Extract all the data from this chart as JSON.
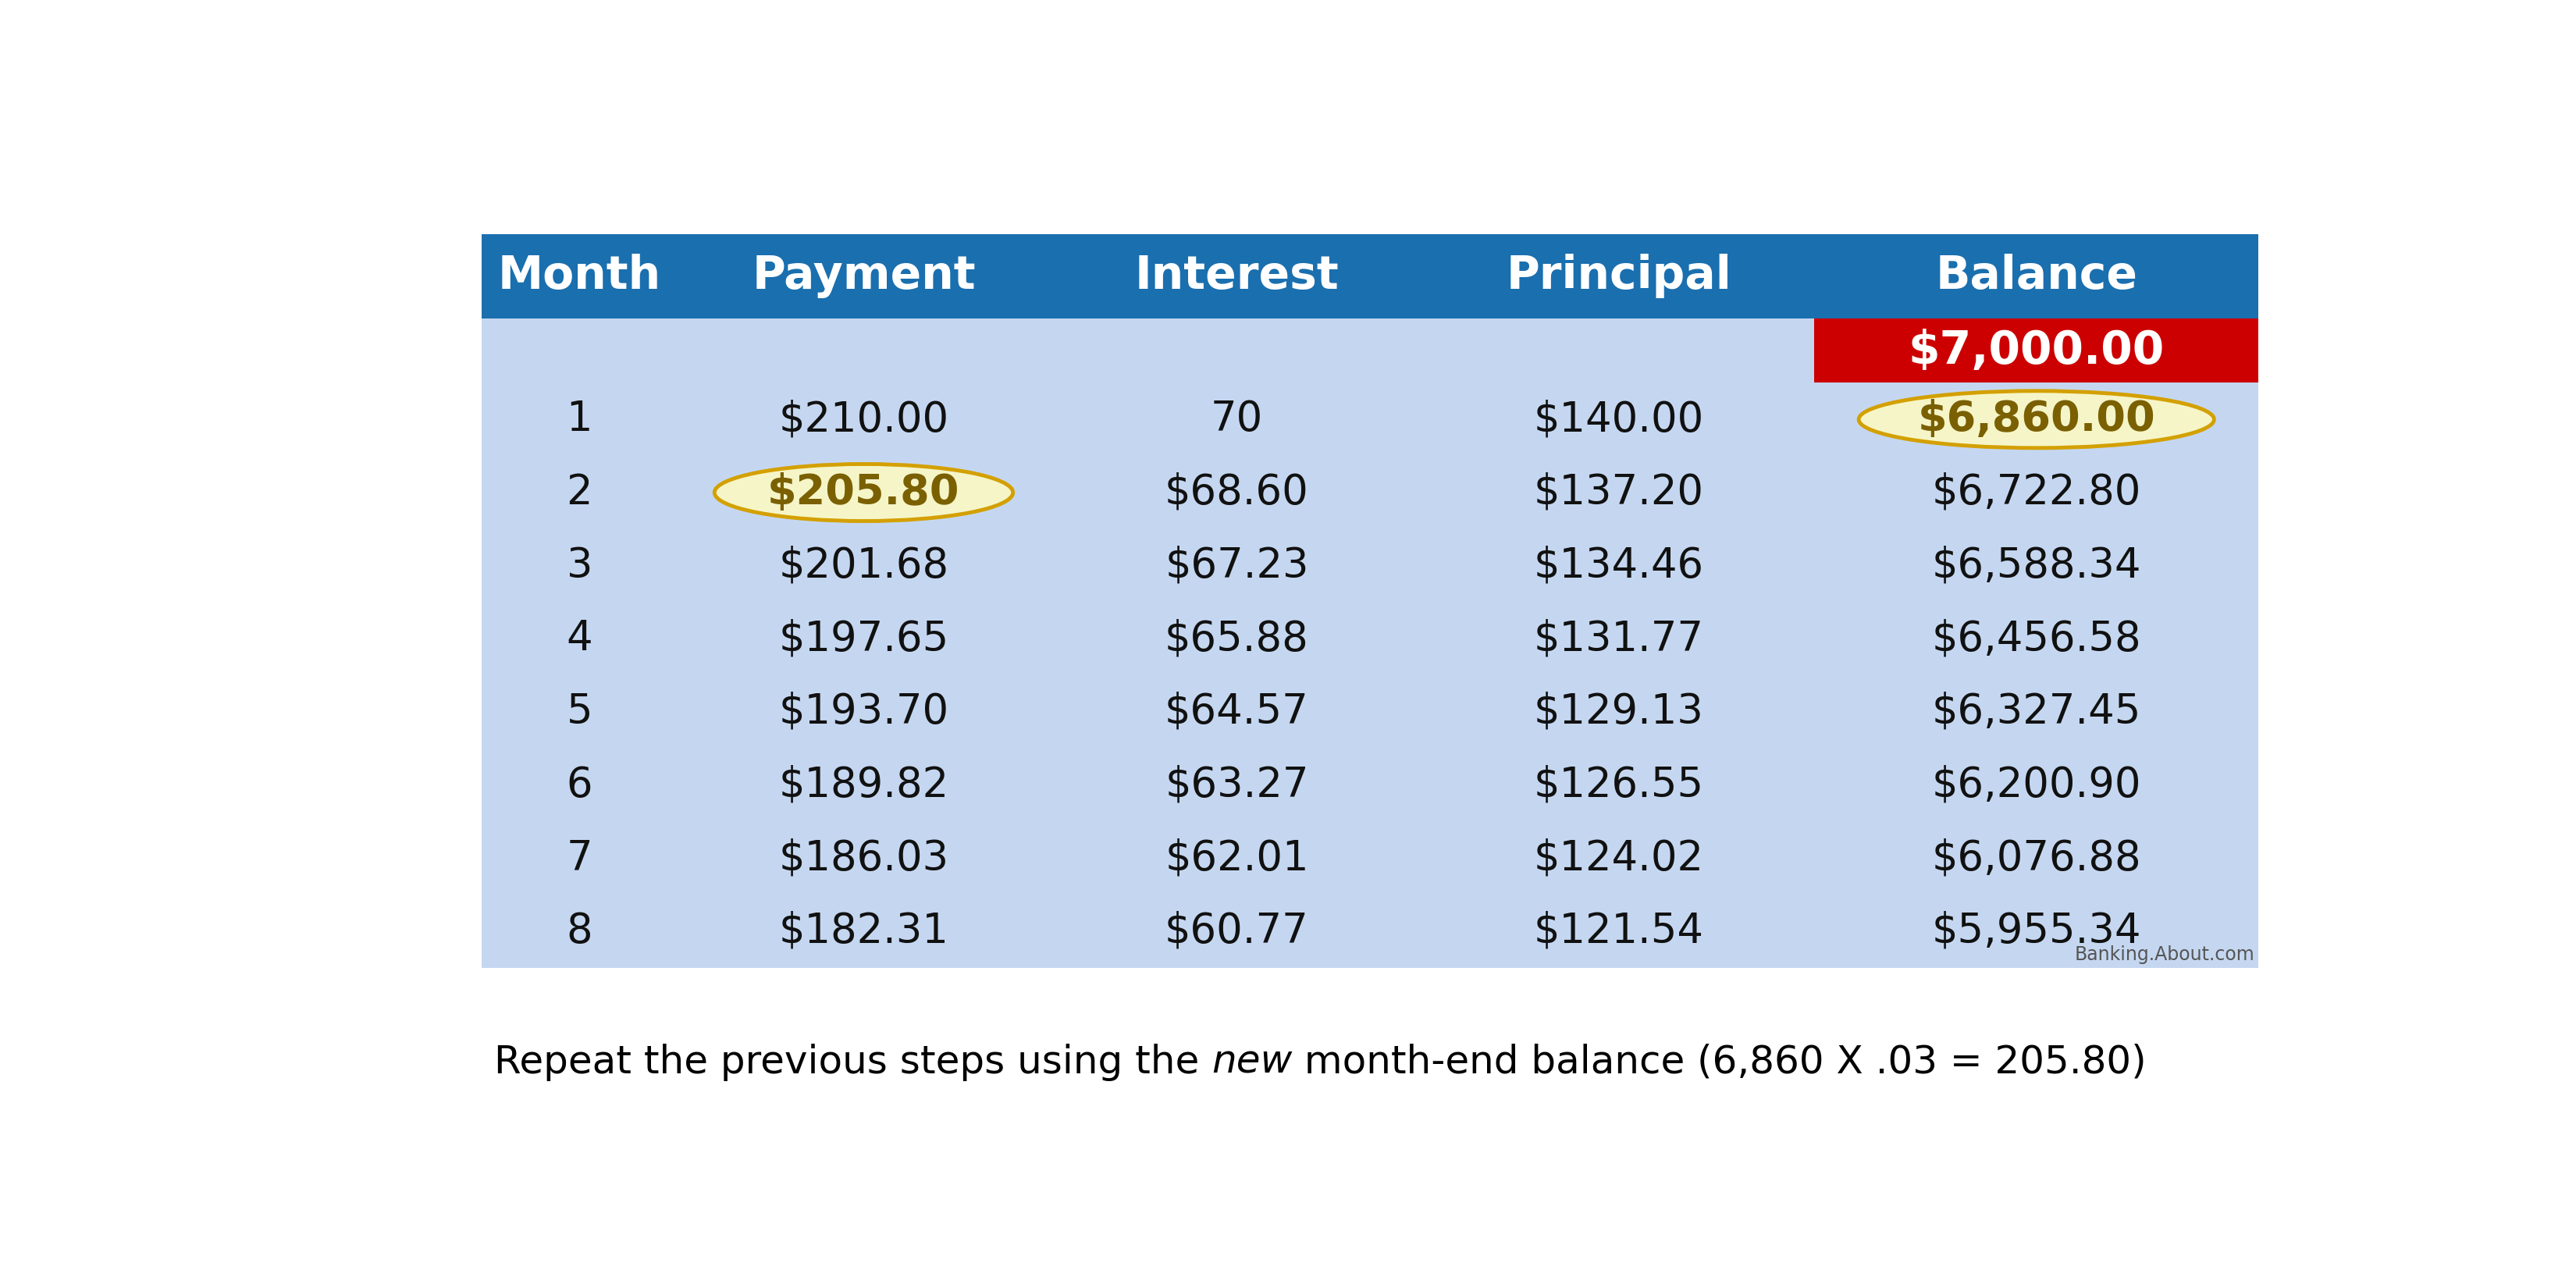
{
  "header_bg": "#1a6faf",
  "header_text_color": "#ffffff",
  "body_bg": "#c5d7f0",
  "body_text_color": "#111111",
  "balance_header_bg": "#cc0000",
  "balance_header_text": "#ffffff",
  "highlight_ellipse_fill": "#f5f5c8",
  "highlight_ellipse_edge": "#d4a000",
  "highlight_text_color": "#7a6000",
  "watermark": "Banking.About.com",
  "columns": [
    "Month",
    "Payment",
    "Interest",
    "Principal",
    "Balance"
  ],
  "initial_balance": "$7,000.00",
  "rows": [
    [
      "1",
      "$210.00",
      "70",
      "$140.00",
      "$6,860.00"
    ],
    [
      "2",
      "$205.80",
      "$68.60",
      "$137.20",
      "$6,722.80"
    ],
    [
      "3",
      "$201.68",
      "$67.23",
      "$134.46",
      "$6,588.34"
    ],
    [
      "4",
      "$197.65",
      "$65.88",
      "$131.77",
      "$6,456.58"
    ],
    [
      "5",
      "$193.70",
      "$64.57",
      "$129.13",
      "$6,327.45"
    ],
    [
      "6",
      "$189.82",
      "$63.27",
      "$126.55",
      "$6,200.90"
    ],
    [
      "7",
      "$186.03",
      "$62.01",
      "$124.02",
      "$6,076.88"
    ],
    [
      "8",
      "$182.31",
      "$60.77",
      "$121.54",
      "$5,955.34"
    ]
  ],
  "payment_highlight_row": 1,
  "payment_highlight_col": 1,
  "balance_highlight_row": 0,
  "balance_highlight_col": 4,
  "fig_width": 33.0,
  "fig_height": 16.5,
  "header_fontsize": 42,
  "body_fontsize": 38,
  "footer_fontsize": 36
}
